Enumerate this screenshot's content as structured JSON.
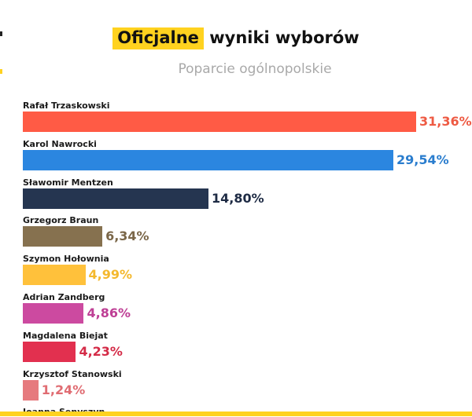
{
  "header": {
    "title_highlight": "Oficjalne",
    "title_rest": "wyniki wyborów",
    "subtitle": "Poparcie ogólnopolskie"
  },
  "colors": {
    "highlight": "#FFD21F",
    "edge_dark": "#222222"
  },
  "chart_data": {
    "type": "bar",
    "orientation": "horizontal",
    "title": "Oficjalne wyniki wyborów",
    "subtitle": "Poparcie ogólnopolskie",
    "xlabel": "",
    "ylabel": "",
    "unit": "%",
    "grid": false,
    "legend": "none",
    "categories": [
      "Rafał Trzaskowski",
      "Karol Nawrocki",
      "Sławomir Mentzen",
      "Grzegorz Braun",
      "Szymon Hołownia",
      "Adrian Zandberg",
      "Magdalena Biejat",
      "Krzysztof Stanowski",
      "Joanna Senyszyn"
    ],
    "values": [
      31.36,
      29.54,
      14.8,
      6.34,
      4.99,
      4.86,
      4.23,
      1.24,
      null
    ],
    "labels": [
      "31,36%",
      "29,54%",
      "14,80%",
      "6,34%",
      "4,99%",
      "4,86%",
      "4,23%",
      "1,24%",
      ""
    ],
    "bar_colors": [
      "#FF5B45",
      "#2B86E0",
      "#253550",
      "#86714F",
      "#FFC13B",
      "#CC4AA0",
      "#E2304F",
      "#E67A7E",
      "#cccccc"
    ],
    "label_colors": [
      "#EE5A43",
      "#2A7DCE",
      "#1E2B44",
      "#7A6648",
      "#F4B82D",
      "#BE3F95",
      "#D42B47",
      "#E06C72",
      "#888888"
    ]
  }
}
